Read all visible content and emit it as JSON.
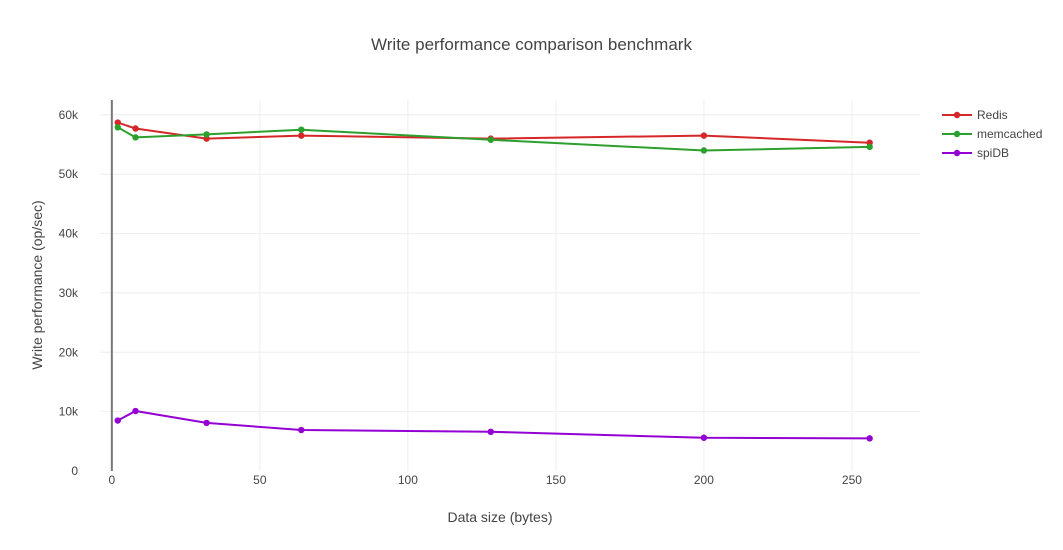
{
  "chart_data": {
    "type": "line",
    "title": "Write performance comparison benchmark",
    "xlabel": "Data size (bytes)",
    "ylabel": "Write performance (op/sec)",
    "xlim": [
      -4,
      273
    ],
    "ylim": [
      0,
      62500
    ],
    "x_ticks": [
      0,
      50,
      100,
      150,
      200,
      250
    ],
    "x_tick_labels": [
      "0",
      "50",
      "100",
      "150",
      "200",
      "250"
    ],
    "y_ticks": [
      0,
      10000,
      20000,
      30000,
      40000,
      50000,
      60000
    ],
    "y_tick_labels": [
      "0",
      "10k",
      "20k",
      "30k",
      "40k",
      "50k",
      "60k"
    ],
    "grid": true,
    "legend_position": "top-right",
    "series": [
      {
        "name": "Redis",
        "color": "#d62728",
        "x": [
          2,
          8,
          32,
          64,
          128,
          200,
          256
        ],
        "y": [
          58700,
          57700,
          56000,
          56500,
          56000,
          56500,
          55300
        ]
      },
      {
        "name": "memcached",
        "color": "#2ca02c",
        "x": [
          2,
          8,
          32,
          64,
          128,
          200,
          256
        ],
        "y": [
          57900,
          56200,
          56700,
          57500,
          55800,
          54000,
          54600
        ]
      },
      {
        "name": "spiDB",
        "color": "#9400d3",
        "x": [
          2,
          8,
          32,
          64,
          128,
          200,
          256
        ],
        "y": [
          8500,
          10100,
          8100,
          6900,
          6600,
          5600,
          5500
        ]
      }
    ]
  }
}
